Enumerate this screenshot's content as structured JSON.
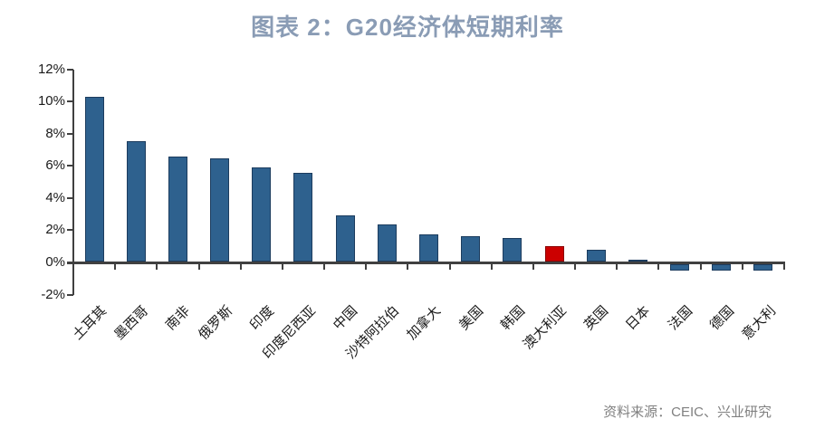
{
  "title": "图表 2：G20经济体短期利率",
  "source_note": "资料来源：CEIC、兴业研究",
  "colors": {
    "title_text": "#8a9cb5",
    "bar_fill": "#2e618e",
    "bar_border": "#1c3c5e",
    "highlight_fill": "#cc0000",
    "highlight_border": "#8b0000",
    "axis": "#404040",
    "tick_label": "#1a1a1a",
    "source_text": "#808080"
  },
  "chart_data": {
    "type": "bar",
    "title": "图表 2：G20经济体短期利率",
    "categories": [
      "土耳其",
      "墨西哥",
      "南非",
      "俄罗斯",
      "印度",
      "印度尼西亚",
      "中国",
      "沙特阿拉伯",
      "加拿大",
      "美国",
      "韩国",
      "澳大利亚",
      "英国",
      "日本",
      "法国",
      "德国",
      "意大利"
    ],
    "category_slugs": [
      "turkey",
      "mexico",
      "south-africa",
      "russia",
      "india",
      "indonesia",
      "china",
      "saudi-arabia",
      "canada",
      "united-states",
      "south-korea",
      "australia",
      "united-kingdom",
      "japan",
      "france",
      "germany",
      "italy"
    ],
    "values": [
      10.25,
      7.5,
      6.5,
      6.4,
      5.85,
      5.5,
      2.85,
      2.3,
      1.7,
      1.55,
      1.45,
      0.95,
      0.75,
      0.1,
      -0.4,
      -0.4,
      -0.4
    ],
    "unit": "%",
    "highlight_index": 11,
    "highlight_category": "澳大利亚",
    "xlabel": "",
    "ylabel": "",
    "ylim": [
      -2,
      12
    ],
    "ytick_values": [
      -2,
      0,
      2,
      4,
      6,
      8,
      10,
      12
    ],
    "ytick_labels": [
      "-2%",
      "0%",
      "2%",
      "4%",
      "6%",
      "8%",
      "10%",
      "12%"
    ],
    "grid": false,
    "legend": "none"
  }
}
